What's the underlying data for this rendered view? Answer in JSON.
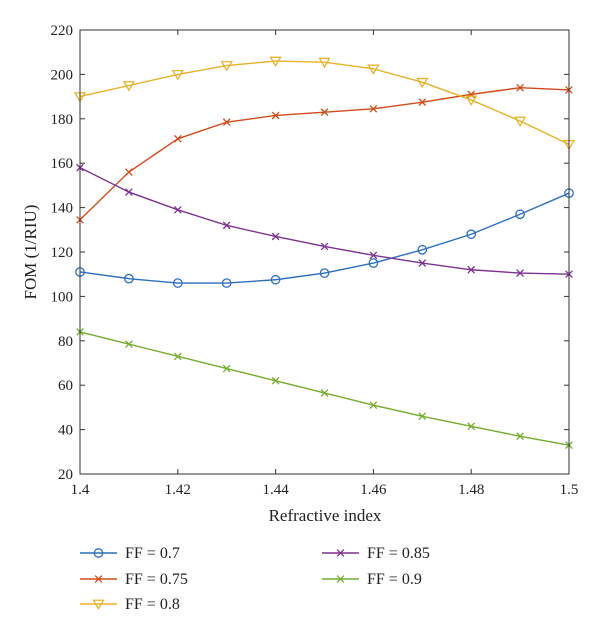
{
  "chart_data": {
    "type": "line",
    "xlabel": "Refractive index",
    "ylabel": "FOM (1/RIU)",
    "xlim": [
      1.4,
      1.5
    ],
    "ylim": [
      20,
      220
    ],
    "xticks": [
      1.4,
      1.42,
      1.44,
      1.46,
      1.48,
      1.5
    ],
    "xtick_labels": [
      "1.4",
      "1.42",
      "1.44",
      "1.46",
      "1.48",
      "1.5"
    ],
    "yticks": [
      20,
      40,
      60,
      80,
      100,
      120,
      140,
      160,
      180,
      200,
      220
    ],
    "ytick_labels": [
      "20",
      "40",
      "60",
      "80",
      "100",
      "120",
      "140",
      "160",
      "180",
      "200",
      "220"
    ],
    "grid": false,
    "legend_position": "bottom",
    "x": [
      1.4,
      1.41,
      1.42,
      1.43,
      1.44,
      1.45,
      1.46,
      1.47,
      1.48,
      1.49,
      1.5
    ],
    "series": [
      {
        "name": "FF = 0.7",
        "color": "#2e6fbd",
        "marker": "circle",
        "values": [
          111,
          108,
          106,
          106,
          107.5,
          110.5,
          115,
          121,
          128,
          137,
          146.5
        ]
      },
      {
        "name": "FF = 0.75",
        "color": "#d24b1a",
        "marker": "x",
        "values": [
          134.5,
          156,
          171,
          178.5,
          181.5,
          183,
          184.5,
          187.5,
          191,
          194,
          193
        ]
      },
      {
        "name": "FF = 0.8",
        "color": "#e8b12a",
        "marker": "triangle-down",
        "values": [
          190,
          195,
          200,
          204,
          206,
          205.5,
          202.5,
          196.5,
          188.5,
          179,
          168.5
        ]
      },
      {
        "name": "FF = 0.85",
        "color": "#7d3391",
        "marker": "x",
        "values": [
          158,
          147,
          139,
          132,
          127,
          122.5,
          118.5,
          115,
          112,
          110.5,
          110
        ]
      },
      {
        "name": "FF = 0.9",
        "color": "#77ac30",
        "marker": "x",
        "values": [
          84,
          78.5,
          73,
          67.5,
          62,
          56.5,
          51,
          46,
          41.5,
          37,
          33
        ]
      }
    ]
  }
}
